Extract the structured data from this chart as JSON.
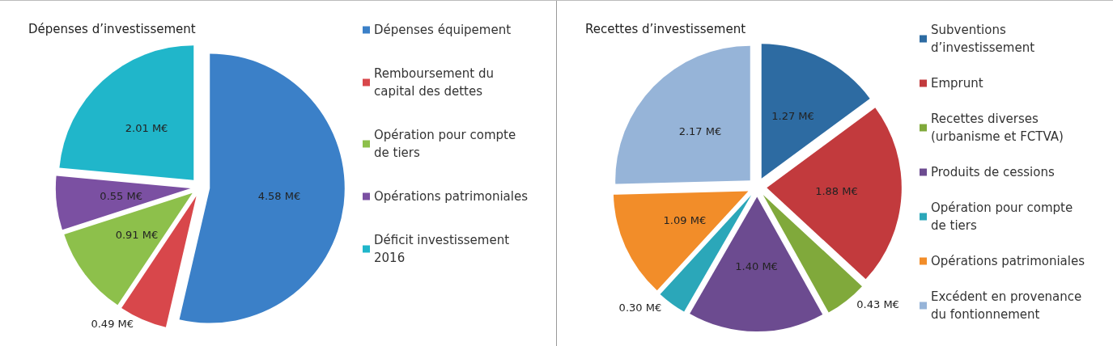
{
  "chart_data": [
    {
      "type": "pie",
      "title": "Dépenses d’investissement",
      "legend": "right",
      "categories": [
        "Dépenses équipement",
        "Remboursement du capital des dettes",
        "Opération pour compte de tiers",
        "Opérations patrimoniales",
        "Déficit investissement 2016"
      ],
      "values": [
        4.58,
        0.49,
        0.91,
        0.55,
        2.01
      ],
      "value_labels": [
        "4.58 M€",
        "0.49 M€",
        "0.91 M€",
        "0.55 M€",
        "2.01 M€"
      ],
      "colors": [
        "#3b80c8",
        "#d8474b",
        "#8dc04b",
        "#7b50a2",
        "#20b6ca"
      ]
    },
    {
      "type": "pie",
      "title": "Recettes d’investissement",
      "legend": "right",
      "categories": [
        "Subventions d’investissement",
        "Emprunt",
        "Recettes diverses (urbanisme et FCTVA)",
        "Produits de cessions",
        "Opération pour compte de tiers",
        "Opérations patrimoniales",
        "Excédent en provenance du fontionnement"
      ],
      "values": [
        1.27,
        1.88,
        0.43,
        1.4,
        0.3,
        1.09,
        2.17
      ],
      "value_labels": [
        "1.27 M€",
        "1.88 M€",
        "0.43 M€",
        "1.40 M€",
        "0.30 M€",
        "1.09 M€",
        "2.17 M€"
      ],
      "colors": [
        "#2d6ba2",
        "#c23a3d",
        "#80a93b",
        "#6c4b90",
        "#2ba7b9",
        "#f28d29",
        "#96b4d8"
      ]
    }
  ]
}
